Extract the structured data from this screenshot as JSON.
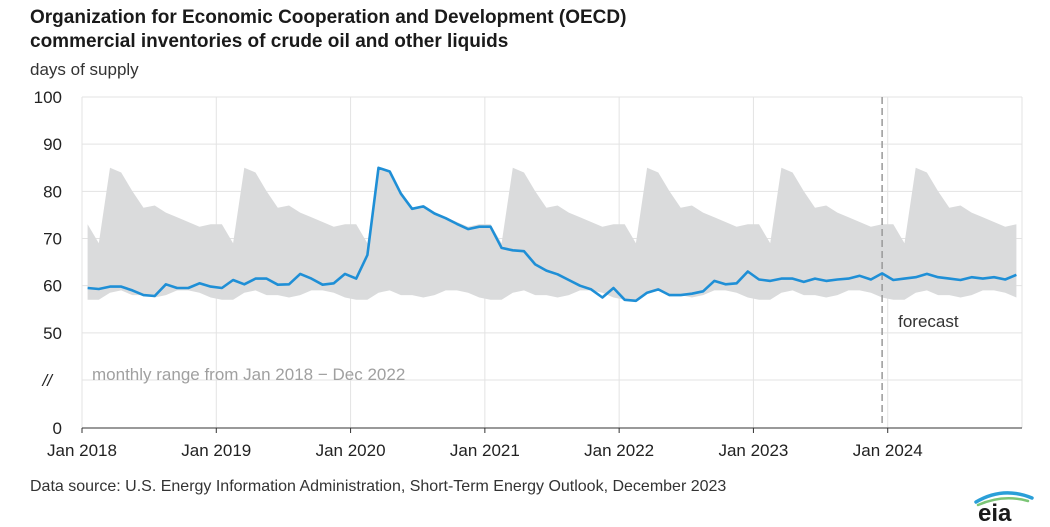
{
  "header": {
    "title_line1": "Organization for Economic Cooperation and Development (OECD)",
    "title_line2": "commercial inventories of crude oil and other liquids"
  },
  "footer": {
    "source": "Data source: U.S. Energy Information Administration, Short-Term Energy Outlook, December 2023",
    "logo_text": "eia"
  },
  "chart_data": {
    "type": "line",
    "title": "Organization for Economic Cooperation and Development (OECD) commercial inventories of crude oil and other liquids",
    "ylabel": "days of supply",
    "ylim": [
      0,
      100
    ],
    "y_ticks": [
      "0",
      "//",
      "50",
      "60",
      "70",
      "80",
      "90",
      "100"
    ],
    "y_tick_values": [
      0,
      50,
      60,
      70,
      80,
      90,
      100
    ],
    "axis_break_label": "//",
    "x_ticks": [
      "Jan 2018",
      "Jan 2019",
      "Jan 2020",
      "Jan 2021",
      "Jan 2022",
      "Jan 2023",
      "Jan 2024"
    ],
    "x_start": "2018-01",
    "x_end": "2024-12",
    "grid": true,
    "forecast_start": "2023-12",
    "annotations": {
      "range_label": "monthly range from Jan 2018 − Dec 2022",
      "forecast_label": "forecast"
    },
    "colors": {
      "line": "#1f8fd6",
      "range": "#dadbdc",
      "forecast_line": "#999999"
    },
    "range_max": [
      73,
      69,
      85,
      84,
      80,
      76.5,
      77,
      75.5,
      74.5,
      73.5,
      72.5,
      73
    ],
    "range_min": [
      57,
      57,
      58.5,
      59,
      58,
      58,
      57.5,
      58,
      59,
      59,
      58.5,
      57.5
    ],
    "series": [
      {
        "values": [
          59.5,
          59.3,
          59.8,
          59.8,
          59,
          58,
          57.8,
          60.3,
          59.5,
          59.5,
          60.5,
          59.8,
          59.5,
          61.2,
          60.3,
          61.5,
          61.5,
          60.2,
          60.3,
          62.5,
          61.5,
          60.2,
          60.5,
          62.5,
          61.5,
          66.5,
          85,
          84.2,
          79.5,
          76.3,
          76.8,
          75.3,
          74.3,
          73.1,
          72,
          72.5,
          72.5,
          68,
          67.5,
          67.3,
          64.5,
          63.2,
          62.4,
          61.2,
          60,
          59.2,
          57.5,
          59.5,
          57,
          56.8,
          58.5,
          59.2,
          58,
          58,
          58.3,
          58.8,
          61,
          60.3,
          60.5,
          63,
          61.3,
          61,
          61.5,
          61.5,
          60.8,
          61.5,
          61,
          61.3,
          61.5,
          62.1,
          61.3,
          62.6,
          61.2,
          61.5,
          61.8,
          62.5,
          61.8,
          61.5,
          61.2,
          61.8,
          61.5,
          61.8,
          61.3,
          62.3
        ]
      }
    ]
  }
}
